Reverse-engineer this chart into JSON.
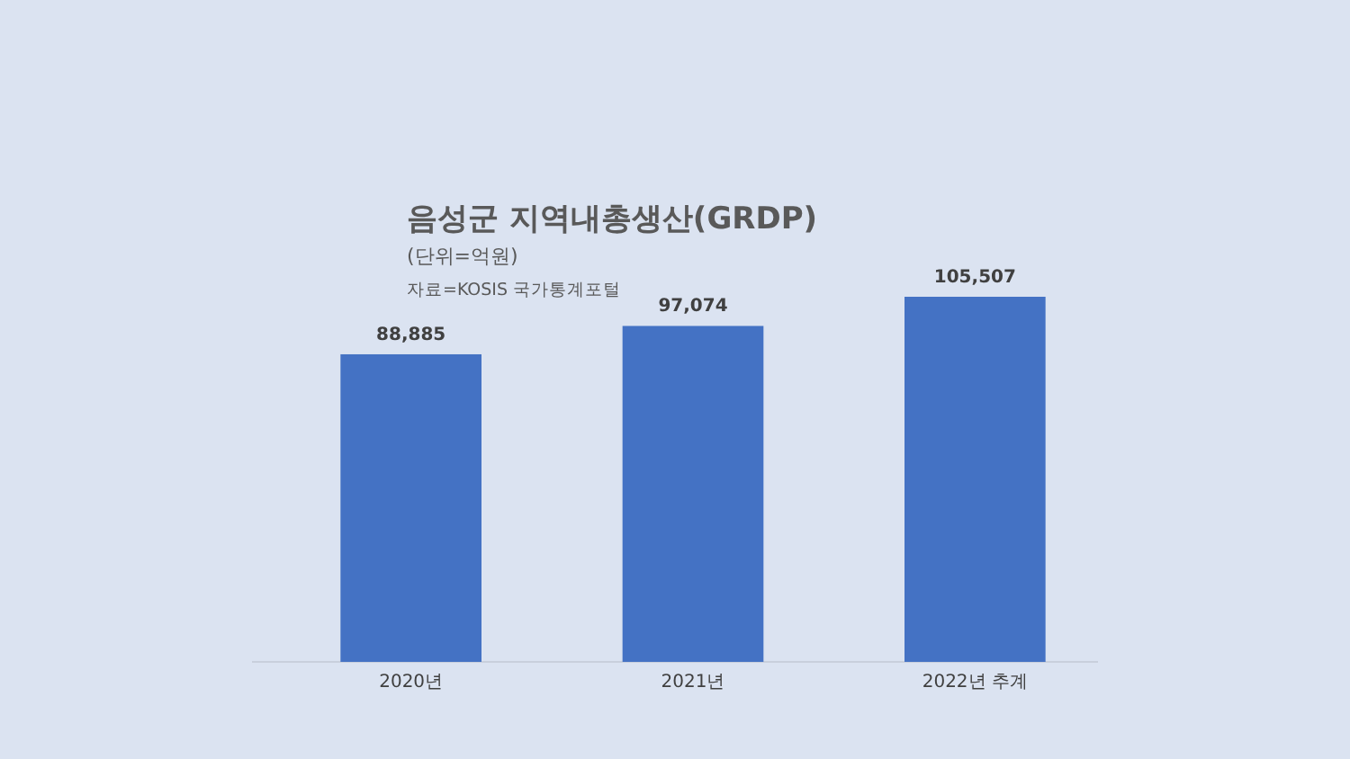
{
  "chart_data": {
    "type": "bar",
    "title": "음성군 지역내총생산(GRDP)",
    "subtitle": "(단위=억원)",
    "annotations": [
      "자료=KOSIS 국가통계포털"
    ],
    "categories": [
      "2020년",
      "2021년",
      "2022년 추계"
    ],
    "values": [
      88885,
      97074,
      105507
    ],
    "color": "#4472c4",
    "value_labels": [
      "88,885",
      "97,074",
      "105,507"
    ]
  }
}
